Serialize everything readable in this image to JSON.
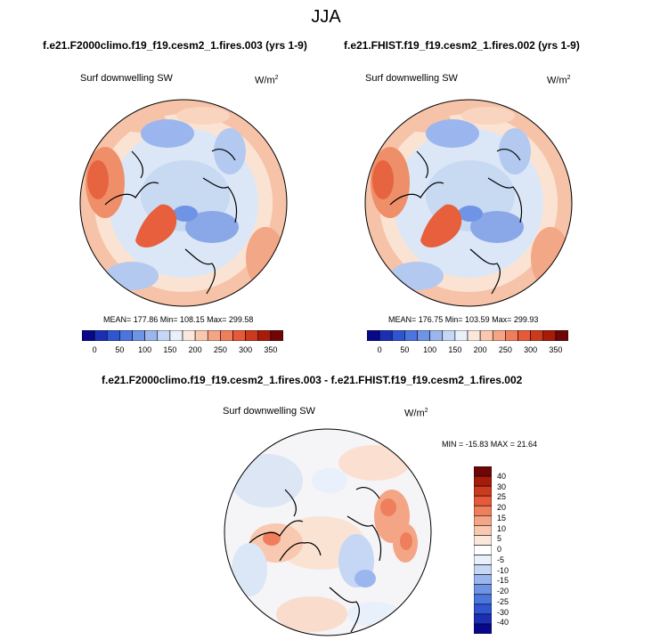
{
  "figure": {
    "title": "JJA"
  },
  "panels": [
    {
      "case": "f.e21.F2000climo.f19_f19.cesm2_1.fires.003 (yrs 1-9)",
      "variable": "Surf downwelling SW",
      "units": "W/m",
      "units_exp": "2",
      "stats": "MEAN= 177.86  Min= 108.15  Max= 299.58"
    },
    {
      "case": "f.e21.FHIST.f19_f19.cesm2_1.fires.002 (yrs 1-9)",
      "variable": "Surf downwelling SW",
      "units": "W/m",
      "units_exp": "2",
      "stats": "MEAN= 176.75  Min= 103.59  Max= 299.93"
    }
  ],
  "diff": {
    "title": "f.e21.F2000climo.f19_f19.cesm2_1.fires.003 - f.e21.FHIST.f19_f19.cesm2_1.fires.002",
    "variable": "Surf downwelling SW",
    "units": "W/m",
    "units_exp": "2",
    "stats": "MIN = -15.83 MAX =  21.64"
  },
  "chart_data": [
    {
      "type": "heatmap",
      "projection": "north polar stereographic",
      "title": "f.e21.F2000climo.f19_f19.cesm2_1.fires.003 (yrs 1-9)",
      "variable": "Surf downwelling SW",
      "units": "W/m2",
      "mean": 177.86,
      "min": 108.15,
      "max": 299.58,
      "colorbar_levels": [
        0,
        25,
        50,
        75,
        100,
        125,
        150,
        175,
        200,
        225,
        250,
        275,
        300,
        325,
        350
      ],
      "colorbar_tick_labels": [
        "0",
        "50",
        "100",
        "150",
        "200",
        "250",
        "300",
        "350"
      ],
      "colorbar_colors": [
        "#08088a",
        "#1c2fb4",
        "#2f55d0",
        "#4a76de",
        "#6f94e6",
        "#9bb6ee",
        "#c5d7f5",
        "#e8f0fb",
        "#fbe8dc",
        "#f8c9b0",
        "#f4a585",
        "#ef7f5c",
        "#e65a3a",
        "#cc3a1d",
        "#a71b0b",
        "#6e0606"
      ],
      "colorbar_orientation": "horizontal"
    },
    {
      "type": "heatmap",
      "projection": "north polar stereographic",
      "title": "f.e21.FHIST.f19_f19.cesm2_1.fires.002 (yrs 1-9)",
      "variable": "Surf downwelling SW",
      "units": "W/m2",
      "mean": 176.75,
      "min": 103.59,
      "max": 299.93,
      "colorbar_levels": [
        0,
        25,
        50,
        75,
        100,
        125,
        150,
        175,
        200,
        225,
        250,
        275,
        300,
        325,
        350
      ],
      "colorbar_tick_labels": [
        "0",
        "50",
        "100",
        "150",
        "200",
        "250",
        "300",
        "350"
      ],
      "colorbar_colors": [
        "#08088a",
        "#1c2fb4",
        "#2f55d0",
        "#4a76de",
        "#6f94e6",
        "#9bb6ee",
        "#c5d7f5",
        "#e8f0fb",
        "#fbe8dc",
        "#f8c9b0",
        "#f4a585",
        "#ef7f5c",
        "#e65a3a",
        "#cc3a1d",
        "#a71b0b",
        "#6e0606"
      ],
      "colorbar_orientation": "horizontal"
    },
    {
      "type": "heatmap",
      "projection": "north polar stereographic",
      "title": "f.e21.F2000climo.f19_f19.cesm2_1.fires.003 - f.e21.FHIST.f19_f19.cesm2_1.fires.002",
      "variable": "Surf downwelling SW",
      "units": "W/m2",
      "min": -15.83,
      "max": 21.64,
      "colorbar_levels": [
        -40,
        -35,
        -30,
        -25,
        -20,
        -15,
        -10,
        -5,
        0,
        5,
        10,
        15,
        20,
        25,
        30,
        35,
        40
      ],
      "colorbar_tick_labels": [
        "40",
        "30",
        "25",
        "20",
        "15",
        "10",
        "5",
        "0",
        "-5",
        "-10",
        "-15",
        "-20",
        "-25",
        "-30",
        "-40"
      ],
      "colorbar_colors": [
        "#08088a",
        "#1c2fb4",
        "#2f55d0",
        "#4a76de",
        "#6f94e6",
        "#9bb6ee",
        "#c5d7f5",
        "#e8f0fb",
        "#ffffff",
        "#fbe8dc",
        "#f8c9b0",
        "#f4a585",
        "#ef7f5c",
        "#e65a3a",
        "#cc3a1d",
        "#a71b0b",
        "#6e0606"
      ],
      "colorbar_orientation": "vertical"
    }
  ]
}
